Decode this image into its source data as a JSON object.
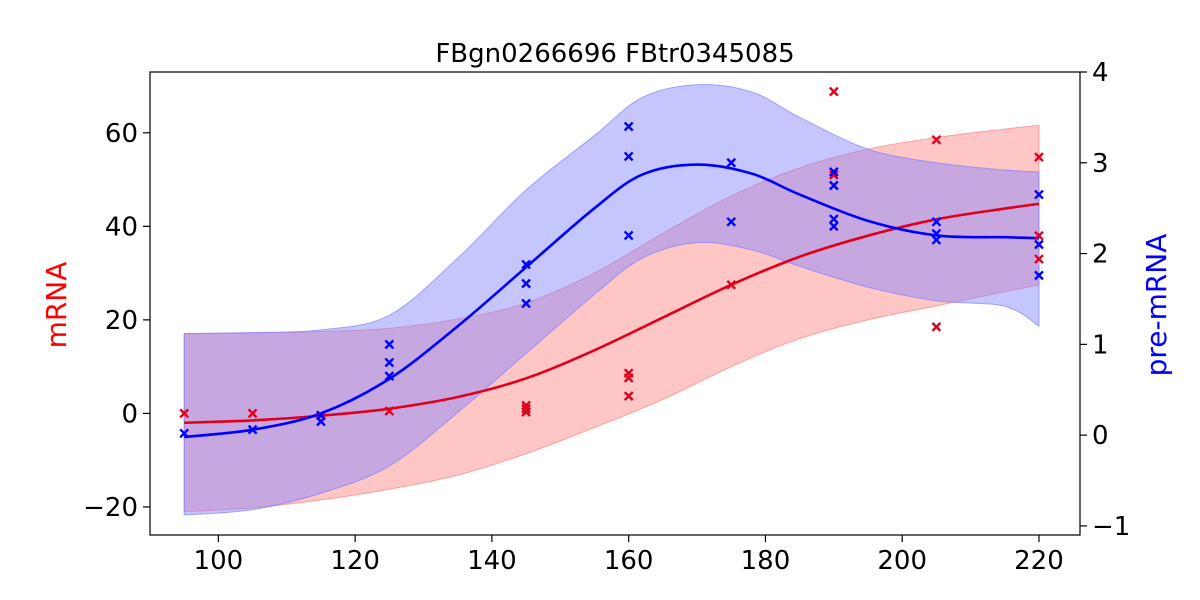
{
  "chart_data": {
    "type": "line",
    "title": "FBgn0266696 FBtr0345085",
    "xlabel": "",
    "xlim": [
      90,
      226
    ],
    "xticks": [
      100,
      120,
      140,
      160,
      180,
      200,
      220
    ],
    "y_left": {
      "label": "mRNA",
      "color": "#ff0000",
      "lim": [
        -26,
        73
      ],
      "ticks": [
        -20,
        0,
        20,
        40,
        60
      ],
      "tick_labels": [
        "−20",
        "0",
        "20",
        "40",
        "60"
      ]
    },
    "y_right": {
      "label": "pre-mRNA",
      "color": "#0000ff",
      "lim": [
        -1.1,
        4.0
      ],
      "ticks": [
        -1,
        0,
        1,
        2,
        3,
        4
      ],
      "tick_labels": [
        "−1",
        "0",
        "1",
        "2",
        "3",
        "4"
      ]
    },
    "grid": false,
    "series": [
      {
        "axis": "left",
        "color": "#e0001b",
        "band_color": "#ff8080",
        "curve": {
          "x": [
            95,
            105,
            115,
            125,
            135,
            145,
            155,
            165,
            175,
            185,
            195,
            205,
            215,
            220
          ],
          "mean": [
            -2.0,
            -1.5,
            -0.5,
            1.0,
            3.5,
            7.5,
            13.5,
            20.5,
            27.5,
            33.5,
            38.0,
            41.5,
            43.8,
            44.8
          ],
          "upper": [
            17.0,
            17.2,
            17.5,
            18.2,
            20.2,
            23.6,
            30.0,
            38.5,
            46.5,
            52.5,
            56.5,
            59.0,
            60.8,
            61.6
          ],
          "lower": [
            -21.0,
            -20.2,
            -18.5,
            -16.2,
            -13.2,
            -8.6,
            -3.0,
            3.0,
            10.0,
            16.0,
            20.0,
            23.0,
            26.0,
            27.5
          ]
        },
        "points": {
          "x": [
            95,
            105,
            115,
            125,
            145,
            145,
            145,
            160,
            160,
            160,
            175,
            190,
            190,
            205,
            205,
            220,
            220,
            220
          ],
          "y": [
            0,
            0,
            -0.5,
            0.5,
            0.3,
            1.0,
            1.7,
            3.7,
            7.6,
            8.6,
            27.5,
            68.8,
            51.0,
            58.5,
            18.5,
            54.8,
            38.0,
            33.0
          ]
        }
      },
      {
        "axis": "right",
        "color": "#0000ff",
        "band_color": "#8080ff",
        "curve": {
          "x": [
            95,
            105,
            115,
            125,
            135,
            145,
            155,
            162,
            170,
            178,
            185,
            195,
            205,
            215,
            220
          ],
          "mean": [
            -0.02,
            0.06,
            0.24,
            0.62,
            1.2,
            1.85,
            2.5,
            2.87,
            2.98,
            2.88,
            2.65,
            2.36,
            2.2,
            2.18,
            2.17
          ],
          "upper": [
            1.12,
            1.13,
            1.16,
            1.32,
            1.95,
            2.7,
            3.3,
            3.72,
            3.86,
            3.78,
            3.5,
            3.15,
            3.0,
            2.92,
            2.9
          ],
          "lower": [
            -0.88,
            -0.82,
            -0.64,
            -0.34,
            0.25,
            0.9,
            1.55,
            1.95,
            2.12,
            2.04,
            1.86,
            1.63,
            1.48,
            1.42,
            1.2
          ]
        },
        "points": {
          "x": [
            95,
            105,
            115,
            115,
            125,
            125,
            125,
            145,
            145,
            145,
            160,
            160,
            160,
            175,
            175,
            190,
            190,
            190,
            190,
            205,
            205,
            205,
            220,
            220,
            220
          ],
          "y": [
            0.02,
            0.06,
            0.15,
            0.22,
            0.65,
            0.8,
            1.0,
            1.45,
            1.67,
            1.88,
            2.2,
            3.07,
            3.4,
            2.35,
            3.0,
            2.3,
            2.38,
            2.75,
            2.9,
            2.15,
            2.22,
            2.35,
            1.76,
            2.1,
            2.65
          ]
        }
      }
    ]
  }
}
